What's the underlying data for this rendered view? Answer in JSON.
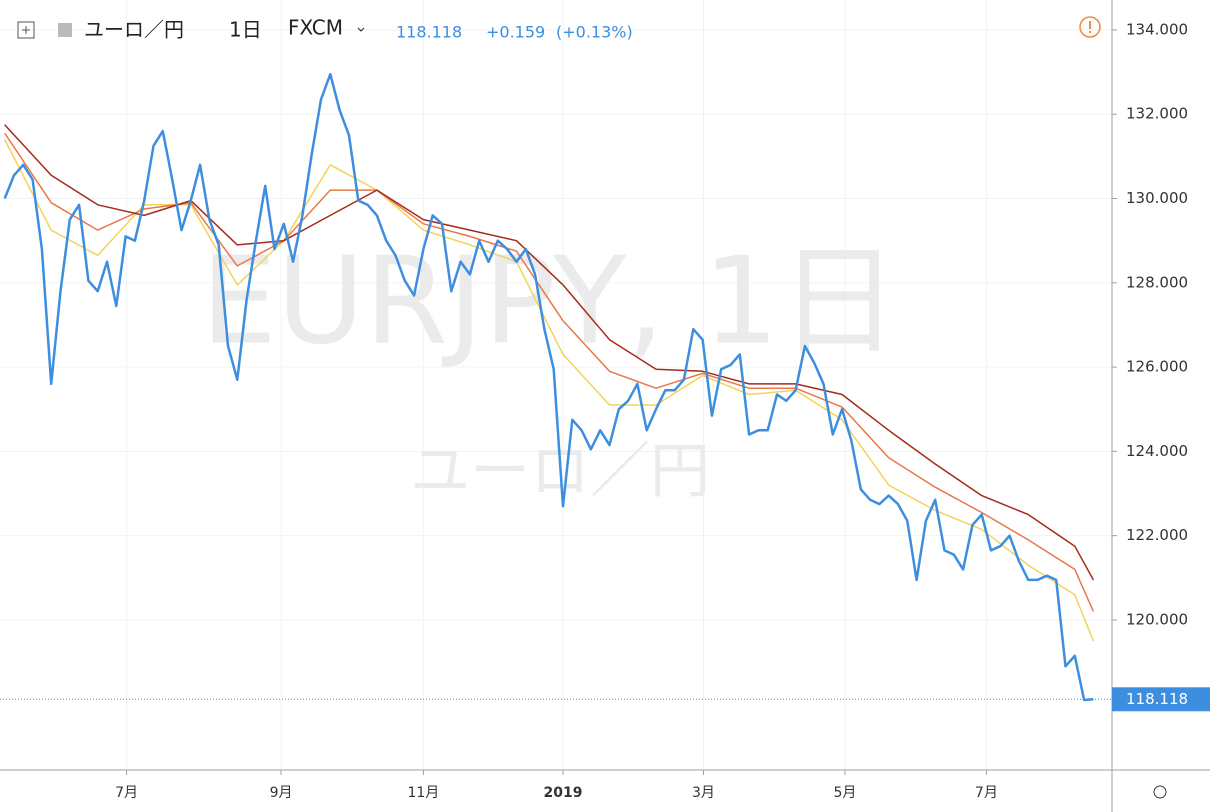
{
  "chart_data": {
    "type": "line",
    "header": {
      "symbol": "ユーロ／円",
      "interval": "1日",
      "source": "FXCM",
      "change": "+0.159",
      "change_pct": "(+0.13%)"
    },
    "watermark": {
      "ticker": "EURJPY, 1日",
      "name": "ユーロ／円"
    },
    "xlim": [
      -0.5,
      119
    ],
    "xticks": [
      {
        "value": 13.1,
        "label": "7月"
      },
      {
        "value": 29.7,
        "label": "9月"
      },
      {
        "value": 45.0,
        "label": "11月"
      },
      {
        "value": 60.0,
        "label": "2019"
      },
      {
        "value": 75.1,
        "label": "3月"
      },
      {
        "value": 90.3,
        "label": "5月"
      },
      {
        "value": 105.5,
        "label": "7月"
      }
    ],
    "ylim": [
      116.44,
      134.71
    ],
    "yticks": [
      {
        "value": 120,
        "label": "120.000"
      },
      {
        "value": 122,
        "label": "122.000"
      },
      {
        "value": 124,
        "label": "124.000"
      },
      {
        "value": 126,
        "label": "126.000"
      },
      {
        "value": 128,
        "label": "128.000"
      },
      {
        "value": 130,
        "label": "130.000"
      },
      {
        "value": 132,
        "label": "132.000"
      },
      {
        "value": 134,
        "label": "134.000"
      }
    ],
    "grid": true,
    "series": [
      {
        "color": "#3e8ee0",
        "values": [
          130.0,
          130.55,
          130.8,
          130.45,
          128.8,
          125.6,
          127.8,
          129.5,
          129.85,
          128.05,
          127.8,
          128.5,
          127.45,
          129.1,
          129.0,
          129.95,
          131.25,
          131.6,
          130.45,
          129.25,
          129.95,
          130.8,
          129.5,
          128.9,
          126.5,
          125.7,
          127.6,
          129.0,
          130.3,
          128.8,
          129.4,
          128.5,
          129.6,
          131.05,
          132.35,
          132.95,
          132.1,
          131.5,
          129.95,
          129.85,
          129.6,
          129.0,
          128.65,
          128.05,
          127.7,
          128.8,
          129.6,
          129.4,
          127.8,
          128.5,
          128.2,
          129.0,
          128.5,
          129.0,
          128.8,
          128.5,
          128.8,
          128.2,
          126.9,
          125.95,
          122.7,
          124.75,
          124.5,
          124.05,
          124.5,
          124.15,
          125.0,
          125.2,
          125.6,
          124.5,
          125.0,
          125.45,
          125.45,
          125.7,
          126.9,
          126.65,
          124.85,
          125.95,
          126.05,
          126.3,
          124.4,
          124.5,
          124.5,
          125.35,
          125.2,
          125.45,
          126.5,
          126.1,
          125.6,
          124.4,
          125.0,
          124.25,
          123.1,
          122.85,
          122.75,
          122.95,
          122.75,
          122.35,
          120.95,
          122.35,
          122.85,
          121.65,
          121.55,
          121.2,
          122.25,
          122.5,
          121.65,
          121.75,
          122.0,
          121.4,
          120.95,
          120.95,
          121.05,
          120.95,
          118.9,
          119.15,
          118.1,
          118.118
        ]
      },
      {
        "color": "#a52a1a",
        "x": [
          0,
          5,
          10,
          15,
          20,
          25,
          30,
          35,
          40,
          45,
          50,
          55,
          60,
          65,
          70,
          75,
          80,
          85,
          90,
          95,
          100,
          105,
          110,
          115,
          117
        ],
        "values": [
          131.75,
          130.55,
          129.85,
          129.6,
          129.95,
          128.9,
          129.0,
          129.6,
          130.2,
          129.5,
          129.25,
          129.0,
          127.95,
          126.65,
          125.95,
          125.9,
          125.6,
          125.6,
          125.35,
          124.5,
          123.7,
          122.95,
          122.5,
          121.75,
          120.95
        ]
      },
      {
        "color": "#e8784a",
        "x": [
          0,
          5,
          10,
          15,
          20,
          25,
          30,
          35,
          40,
          45,
          50,
          55,
          60,
          65,
          70,
          75,
          80,
          85,
          90,
          95,
          100,
          105,
          110,
          115,
          117
        ],
        "values": [
          131.55,
          129.9,
          129.25,
          129.75,
          129.9,
          128.4,
          129.0,
          130.2,
          130.2,
          129.4,
          129.1,
          128.75,
          127.1,
          125.9,
          125.5,
          125.85,
          125.5,
          125.5,
          125.05,
          123.85,
          123.15,
          122.55,
          121.9,
          121.2,
          120.2
        ]
      },
      {
        "color": "#f3d35a",
        "x": [
          0,
          5,
          10,
          15,
          20,
          25,
          30,
          35,
          40,
          45,
          50,
          55,
          60,
          65,
          70,
          75,
          80,
          85,
          90,
          95,
          100,
          105,
          110,
          115,
          117
        ],
        "values": [
          131.4,
          129.25,
          128.65,
          129.85,
          129.85,
          127.95,
          129.0,
          130.8,
          130.2,
          129.25,
          128.9,
          128.5,
          126.3,
          125.1,
          125.1,
          125.8,
          125.35,
          125.45,
          124.75,
          123.2,
          122.6,
          122.15,
          121.3,
          120.6,
          119.5
        ]
      }
    ]
  }
}
